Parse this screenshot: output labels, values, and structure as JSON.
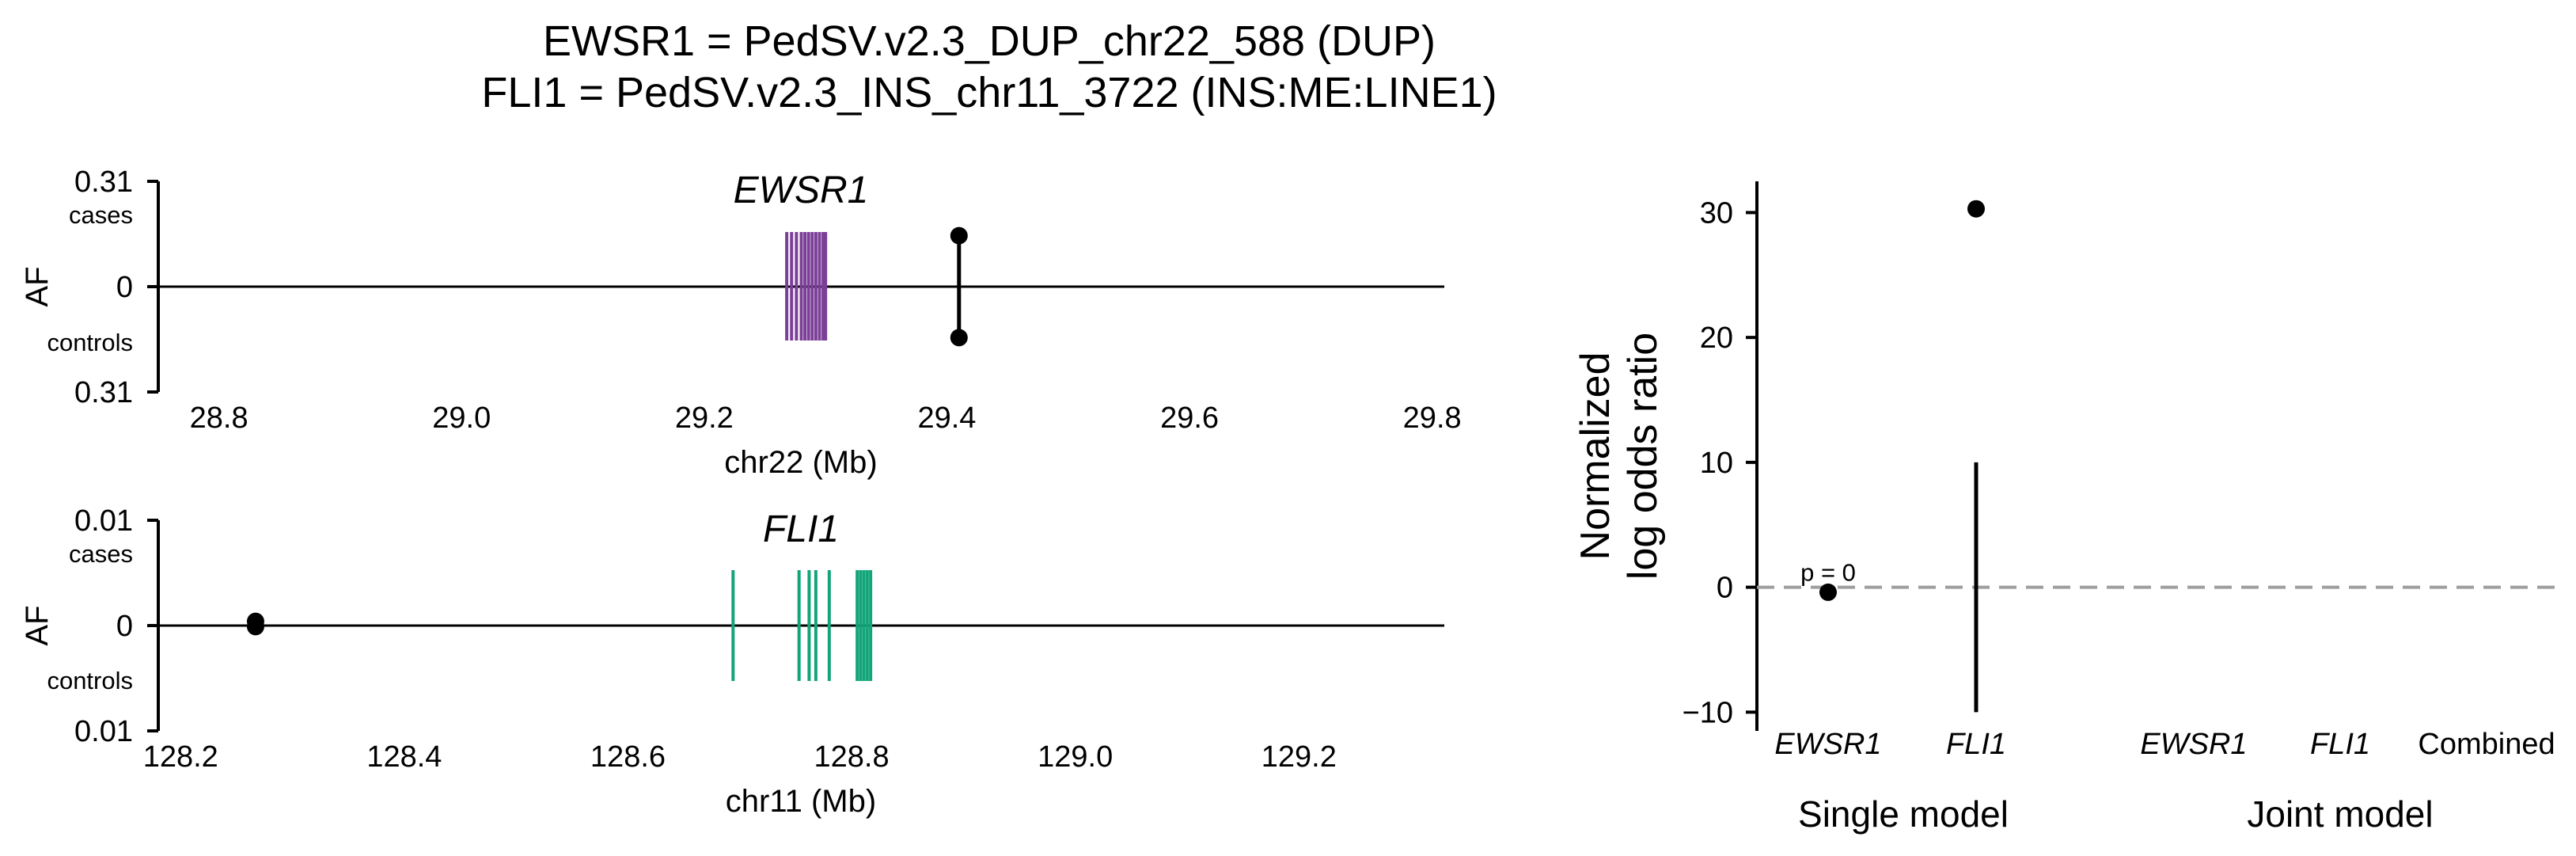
{
  "title_lines": [
    "EWSR1 = PedSV.v2.3_DUP_chr22_588 (DUP)",
    "FLI1 = PedSV.v2.3_INS_chr11_3722 (INS:ME:LINE1)"
  ],
  "colors": {
    "ewsr1_gene": "#7b3f98",
    "fli1_gene": "#13a47a",
    "points": "#000000",
    "null_line": "#9e9e9e"
  },
  "chart_data": [
    {
      "type": "scatter",
      "gene_label": "EWSR1",
      "xlabel": "chr22 (Mb)",
      "ylabel": "AF",
      "xlim": [
        28.75,
        29.81
      ],
      "xticks": [
        "28.8",
        "29.0",
        "29.2",
        "29.4",
        "29.6",
        "29.8"
      ],
      "ytick_top": "0.31",
      "ytick_mid": "0",
      "ytick_bottom": "0.31",
      "top_label": "cases",
      "bottom_label": "controls",
      "exons_mb": [
        29.268,
        29.272,
        29.276,
        29.28,
        29.283,
        29.286,
        29.289,
        29.292,
        29.295,
        29.298,
        29.3
      ],
      "variant": {
        "position_mb": 29.41,
        "af_cases": 0.15,
        "af_controls": 0.15
      }
    },
    {
      "type": "scatter",
      "gene_label": "FLI1",
      "xlabel": "chr11 (Mb)",
      "ylabel": "AF",
      "xlim": [
        128.18,
        129.33
      ],
      "xticks": [
        "128.2",
        "128.4",
        "128.6",
        "128.8",
        "129.0",
        "129.2"
      ],
      "ytick_top": "0.01",
      "ytick_mid": "0",
      "ytick_bottom": "0.01",
      "top_label": "cases",
      "bottom_label": "controls",
      "exons_mb": [
        128.694,
        128.753,
        128.762,
        128.768,
        128.78,
        128.805,
        128.808,
        128.811,
        128.814,
        128.817
      ],
      "variant": {
        "position_mb": 128.267,
        "af_cases": 0.0004,
        "af_controls": 0.0001
      }
    },
    {
      "type": "scatter",
      "ylabel_lines": [
        "Normalized",
        "log odds ratio"
      ],
      "ylim": [
        -11.5,
        32.5
      ],
      "yticks": [
        -10,
        0,
        10,
        20,
        30
      ],
      "ytick_labels": [
        "−10",
        "0",
        "10",
        "20",
        "30"
      ],
      "categories": [
        "EWSR1",
        "FLI1",
        "EWSR1",
        "FLI1",
        "Combined"
      ],
      "groups": [
        "Single model",
        "Joint model"
      ],
      "points": [
        {
          "category_index": 0,
          "value": -0.4,
          "annotation": "p = 0"
        },
        {
          "category_index": 1,
          "value": 30.3,
          "ci": [
            -10,
            10
          ]
        }
      ]
    }
  ]
}
